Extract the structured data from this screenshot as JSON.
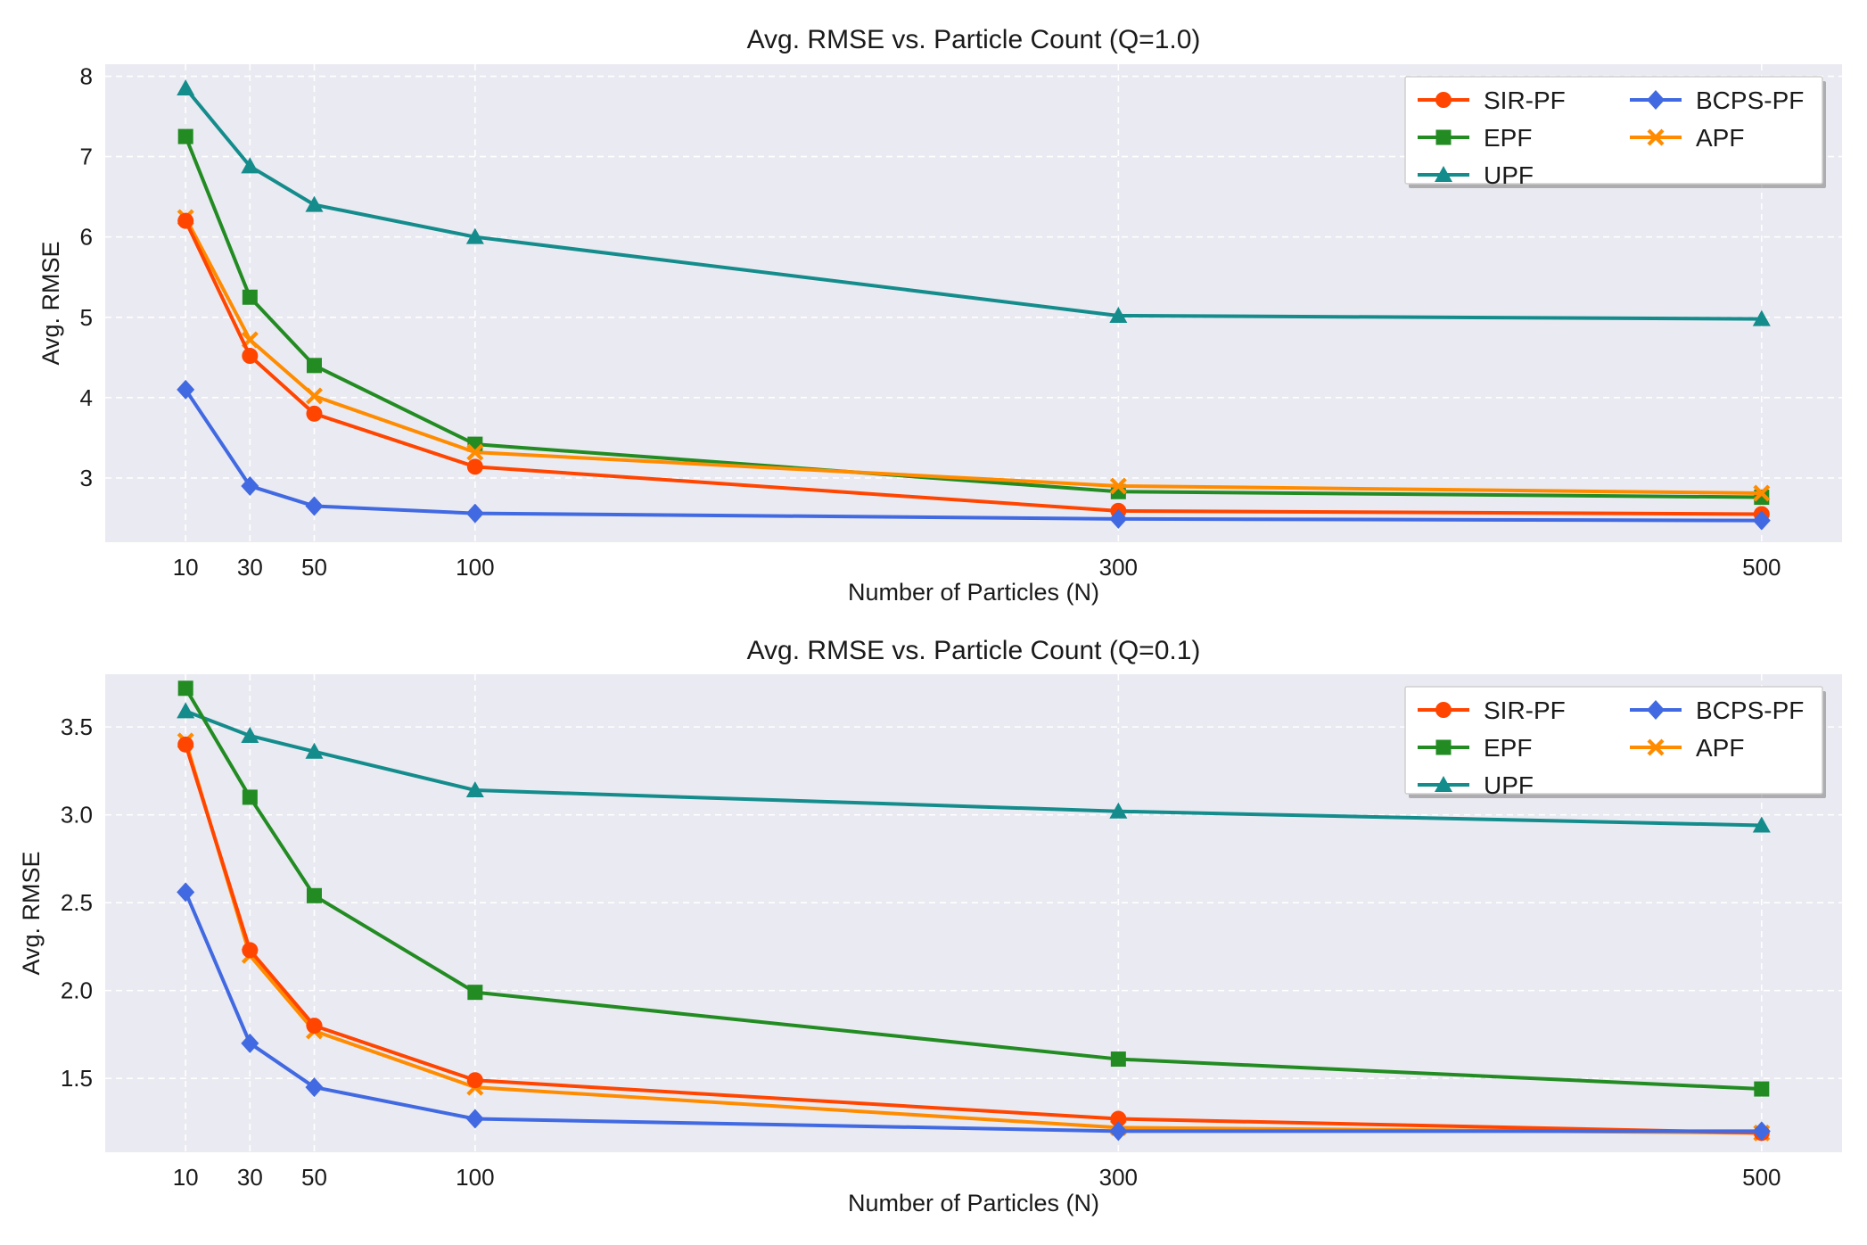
{
  "chart_data": [
    {
      "type": "line",
      "title": "Avg. RMSE vs. Particle Count (Q=1.0)",
      "xlabel": "Number of Particles (N)",
      "ylabel": "Avg. RMSE",
      "x": [
        10,
        30,
        50,
        100,
        300,
        500
      ],
      "x_tick_labels": [
        "10",
        "30",
        "50",
        "100",
        "300",
        "500"
      ],
      "xlim": [
        -15,
        525
      ],
      "ylim": [
        2.2,
        8.15
      ],
      "y_ticks": [
        3,
        4,
        5,
        6,
        7,
        8
      ],
      "y_tick_labels": [
        "3",
        "4",
        "5",
        "6",
        "7",
        "8"
      ],
      "grid": true,
      "legend_position": "top-right",
      "series": [
        {
          "name": "SIR-PF",
          "color": "#ff4500",
          "marker": "circle",
          "values": [
            6.2,
            4.52,
            3.8,
            3.14,
            2.59,
            2.55
          ]
        },
        {
          "name": "EPF",
          "color": "#228b22",
          "marker": "square",
          "values": [
            7.25,
            5.25,
            4.4,
            3.42,
            2.83,
            2.76
          ]
        },
        {
          "name": "UPF",
          "color": "#148c8c",
          "marker": "triangle",
          "values": [
            7.85,
            6.88,
            6.4,
            6.0,
            5.02,
            4.98
          ]
        },
        {
          "name": "BCPS-PF",
          "color": "#4169e1",
          "marker": "diamond",
          "values": [
            4.1,
            2.9,
            2.65,
            2.56,
            2.49,
            2.47
          ]
        },
        {
          "name": "APF",
          "color": "#ff8c00",
          "marker": "x",
          "values": [
            6.24,
            4.72,
            4.02,
            3.32,
            2.9,
            2.81
          ]
        }
      ]
    },
    {
      "type": "line",
      "title": "Avg. RMSE vs. Particle Count (Q=0.1)",
      "xlabel": "Number of Particles (N)",
      "ylabel": "Avg. RMSE",
      "x": [
        10,
        30,
        50,
        100,
        300,
        500
      ],
      "x_tick_labels": [
        "10",
        "30",
        "50",
        "100",
        "300",
        "500"
      ],
      "xlim": [
        -15,
        525
      ],
      "ylim": [
        1.08,
        3.8
      ],
      "y_ticks": [
        1.5,
        2.0,
        2.5,
        3.0,
        3.5
      ],
      "y_tick_labels": [
        "1.5",
        "2.0",
        "2.5",
        "3.0",
        "3.5"
      ],
      "grid": true,
      "legend_position": "top-right",
      "series": [
        {
          "name": "SIR-PF",
          "color": "#ff4500",
          "marker": "circle",
          "values": [
            3.4,
            2.23,
            1.8,
            1.49,
            1.27,
            1.19
          ]
        },
        {
          "name": "EPF",
          "color": "#228b22",
          "marker": "square",
          "values": [
            3.72,
            3.1,
            2.54,
            1.99,
            1.61,
            1.44
          ]
        },
        {
          "name": "UPF",
          "color": "#148c8c",
          "marker": "triangle",
          "values": [
            3.59,
            3.45,
            3.36,
            3.14,
            3.02,
            2.94
          ]
        },
        {
          "name": "BCPS-PF",
          "color": "#4169e1",
          "marker": "diamond",
          "values": [
            2.56,
            1.7,
            1.45,
            1.27,
            1.2,
            1.2
          ]
        },
        {
          "name": "APF",
          "color": "#ff8c00",
          "marker": "x",
          "values": [
            3.42,
            2.2,
            1.77,
            1.45,
            1.22,
            1.19
          ]
        }
      ]
    }
  ]
}
